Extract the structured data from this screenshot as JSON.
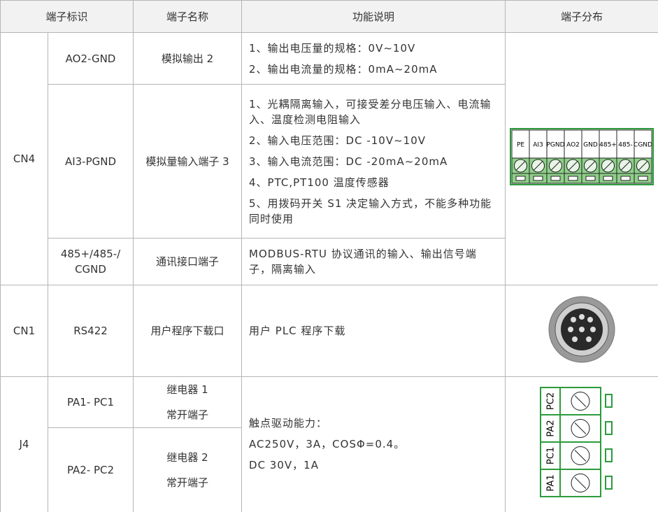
{
  "header": {
    "columns": [
      "端子标识",
      "端子名称",
      "功能说明",
      "端子分布"
    ]
  },
  "groups": [
    {
      "id": "CN4",
      "rows": [
        {
          "terminal": [
            "AO2-GND"
          ],
          "name": [
            "模拟输出 2"
          ],
          "functions": [
            "1、输出电压量的规格：0V~10V",
            "2、输出电流量的规格：0mA~20mA"
          ]
        },
        {
          "terminal": [
            "AI3-PGND"
          ],
          "name": [
            "模拟量输入端子 3"
          ],
          "functions": [
            "1、光耦隔离输入，可接受差分电压输入、电流输入、温度检测电阻输入",
            "2、输入电压范围：DC -10V~10V",
            "3、输入电流范围：DC -20mA~20mA",
            "4、PTC,PT100 温度传感器",
            "5、用拨码开关 S1 决定输入方式，不能多种功能同时使用"
          ]
        },
        {
          "terminal": [
            "485+/485-/",
            "CGND"
          ],
          "name": [
            "通讯接口端子"
          ],
          "functions": [
            "MODBUS-RTU 协议通讯的输入、输出信号端子，隔离输入"
          ]
        }
      ],
      "diagram": {
        "labels": [
          "PE",
          "AI3",
          "PGND",
          "AO2",
          "GND",
          "485+",
          "485-",
          "CGND"
        ]
      }
    },
    {
      "id": "CN1",
      "rows": [
        {
          "terminal": [
            "RS422"
          ],
          "name": [
            "用户程序下载口"
          ],
          "functions": [
            "用户 PLC 程序下载"
          ]
        }
      ]
    },
    {
      "id": "J4",
      "rows": [
        {
          "terminal": [
            "PA1- PC1"
          ],
          "name": [
            "继电器 1",
            "常开端子"
          ]
        },
        {
          "terminal": [
            "PA2- PC2"
          ],
          "name": [
            "继电器 2",
            "常开端子"
          ]
        }
      ],
      "functions": [
        "触点驱动能力：",
        "AC250V，3A，COSΦ=0.4。",
        "DC 30V，1A"
      ],
      "diagram": {
        "labels": [
          "PC2",
          "PA2",
          "PC1",
          "PA1"
        ]
      }
    }
  ]
}
